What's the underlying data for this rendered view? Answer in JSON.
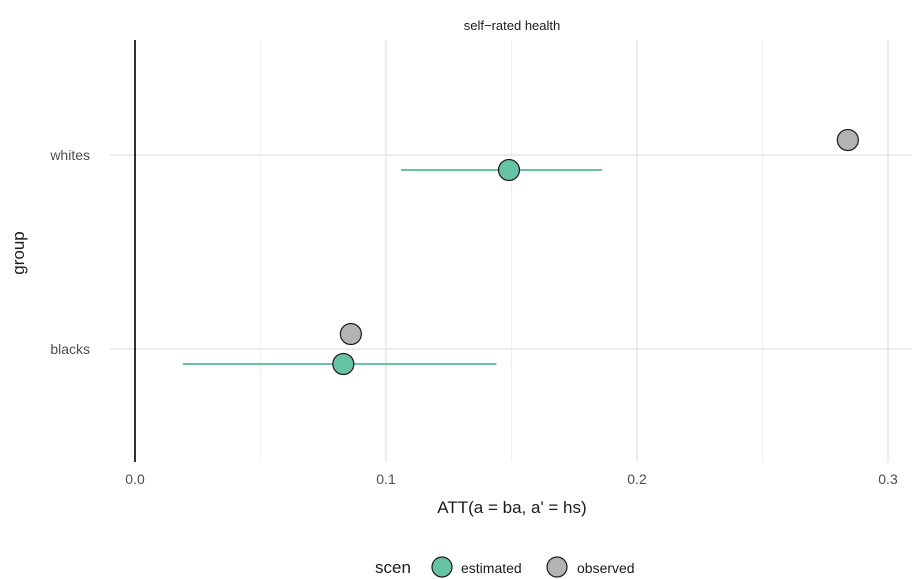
{
  "chart_data": {
    "type": "scatter",
    "title": "self−rated health",
    "xlabel": "ATT(a = ba, a' = hs)",
    "ylabel": "group",
    "xlim": [
      -0.0,
      0.3
    ],
    "x_ticks": [
      {
        "value": 0.0,
        "label": "0.0"
      },
      {
        "value": 0.1,
        "label": "0.1"
      },
      {
        "value": 0.2,
        "label": "0.2"
      },
      {
        "value": 0.3,
        "label": "0.3"
      }
    ],
    "categories": [
      "blacks",
      "whites"
    ],
    "grid": true,
    "reference_line_x": 0.0,
    "legend": {
      "title": "scen",
      "position": "bottom",
      "entries": [
        {
          "label": "estimated",
          "color": "#66c2a5"
        },
        {
          "label": "observed",
          "color": "#b3b3b3"
        }
      ]
    },
    "series": [
      {
        "name": "estimated",
        "color": "#66c2a5",
        "points": [
          {
            "group": "blacks",
            "x": 0.083,
            "lower": 0.019,
            "upper": 0.144
          },
          {
            "group": "whites",
            "x": 0.149,
            "lower": 0.106,
            "upper": 0.186
          }
        ]
      },
      {
        "name": "observed",
        "color": "#b3b3b3",
        "points": [
          {
            "group": "blacks",
            "x": 0.086
          },
          {
            "group": "whites",
            "x": 0.284
          }
        ]
      }
    ]
  }
}
